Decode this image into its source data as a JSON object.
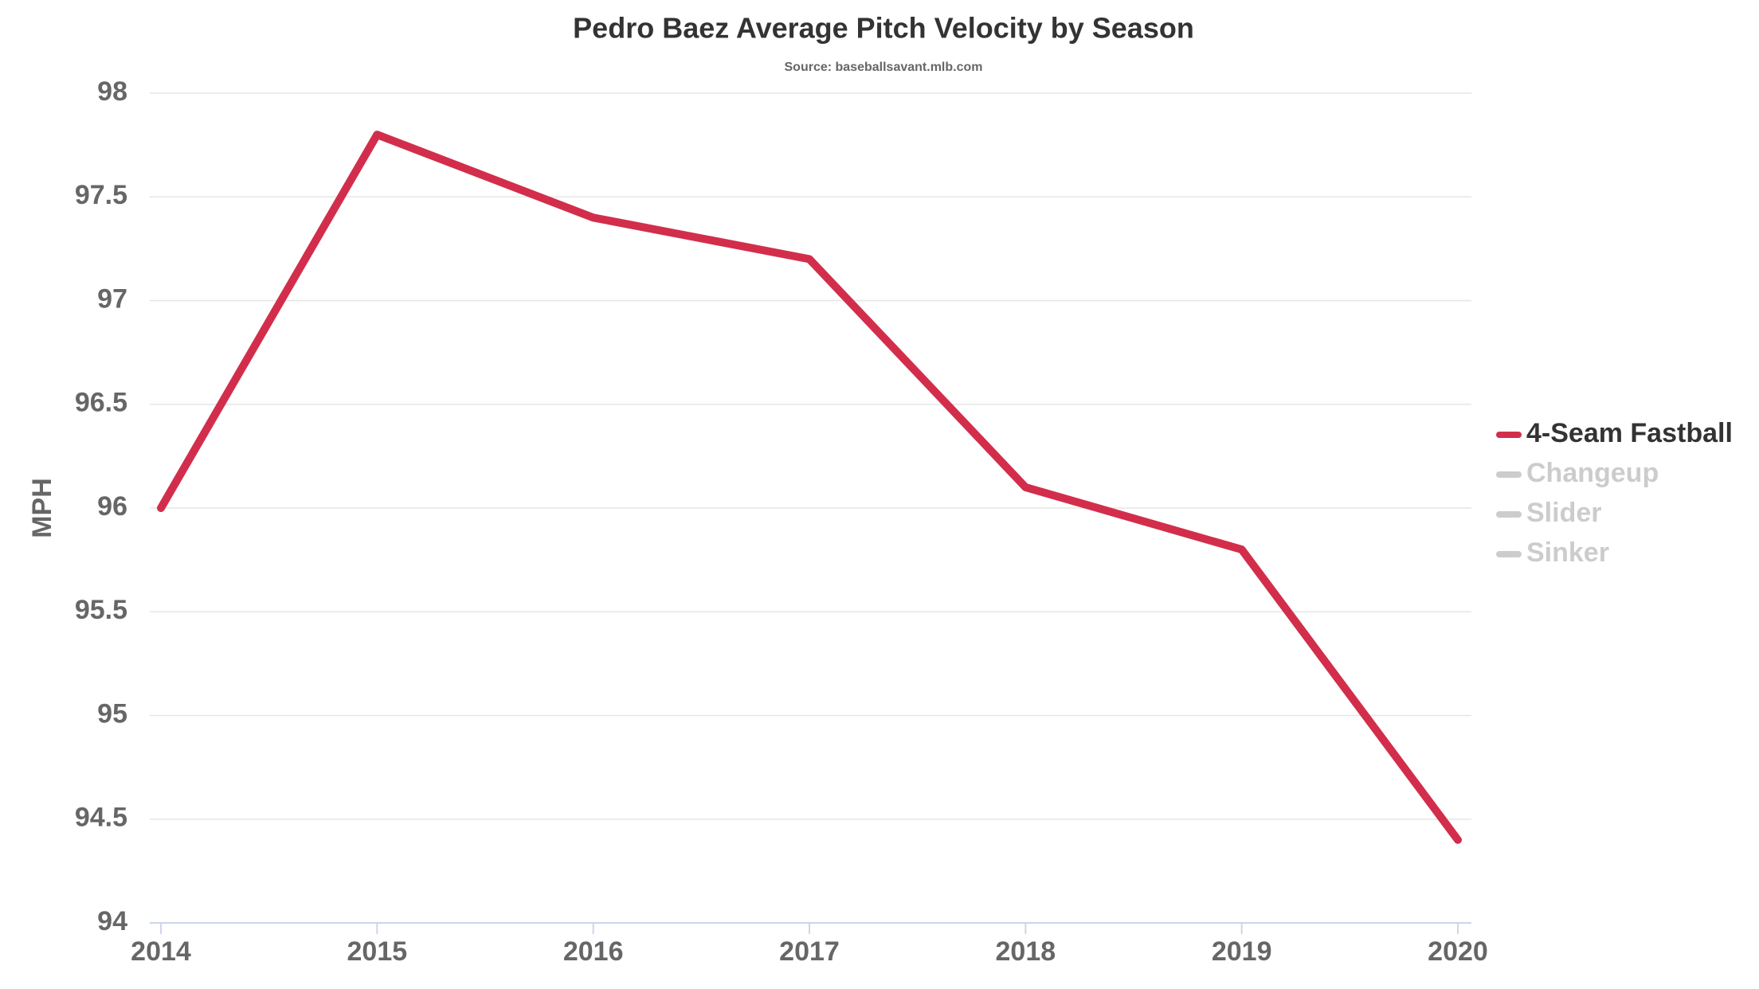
{
  "chart_data": {
    "type": "line",
    "title": "Pedro Baez Average Pitch Velocity by Season",
    "subtitle": "Source: baseballsavant.mlb.com",
    "y_label": "MPH",
    "x": [
      2014,
      2015,
      2016,
      2017,
      2018,
      2019,
      2020
    ],
    "xlim": [
      2014,
      2020
    ],
    "xticks": [
      2014,
      2015,
      2016,
      2017,
      2018,
      2019,
      2020
    ],
    "ylim": [
      94,
      98
    ],
    "yticks": [
      94,
      94.5,
      95,
      95.5,
      96,
      96.5,
      97,
      97.5,
      98
    ],
    "grid": true,
    "legend": "right",
    "series": [
      {
        "name": "4-Seam Fastball",
        "color": "#d22e4c",
        "visible": true,
        "values": [
          96.0,
          97.8,
          97.4,
          97.2,
          96.1,
          95.8,
          94.4
        ]
      },
      {
        "name": "Changeup",
        "color": "#cccccc",
        "visible": false,
        "values": [
          null,
          null,
          null,
          null,
          null,
          null,
          null
        ]
      },
      {
        "name": "Slider",
        "color": "#cccccc",
        "visible": false,
        "values": [
          null,
          null,
          null,
          null,
          null,
          null,
          null
        ]
      },
      {
        "name": "Sinker",
        "color": "#cccccc",
        "visible": false,
        "values": [
          null,
          null,
          null,
          null,
          null,
          null,
          null
        ]
      }
    ]
  }
}
